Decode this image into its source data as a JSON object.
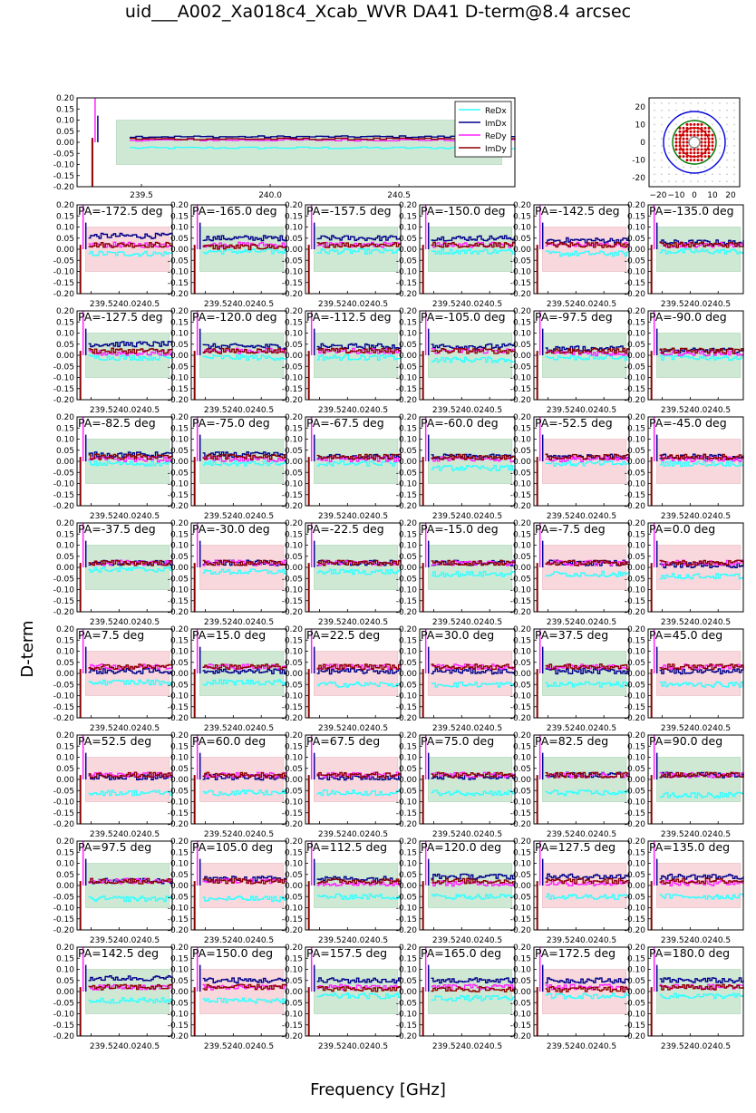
{
  "title": "uid___A002_Xa018c4_Xcab_WVR DA41 D-term@8.4 arcsec",
  "chart_data": {
    "type": "line",
    "title": "uid___A002_Xa018c4_Xcab_WVR DA41 D-term@8.4 arcsec",
    "xlabel": "Frequency [GHz]",
    "ylabel": "D-term",
    "xlim": [
      239.25,
      240.95
    ],
    "ylim": [
      -0.2,
      0.2
    ],
    "yticks": [
      "0.20",
      "0.15",
      "0.10",
      "0.05",
      "0.00",
      "-0.05",
      "-0.10",
      "-0.15",
      "-0.20"
    ],
    "xticks_top": [
      "239.5",
      "240.0",
      "240.5"
    ],
    "xtick_label_small": "239.5240.0240.5",
    "legend": {
      "entries": [
        "ReDx",
        "ImDx",
        "ReDy",
        "ImDy"
      ],
      "position": "top-right"
    },
    "series_colors": {
      "ReDx": "#33ffff",
      "ImDx": "#00008b",
      "ReDy": "#ff22ff",
      "ImDy": "#8b0000"
    },
    "band_colors": {
      "green": "#cfe8d4",
      "red": "#f8d8dc"
    },
    "band_range": [
      -0.1,
      0.1
    ],
    "overview": {
      "ReDx": -0.025,
      "ImDx": 0.025,
      "ReDy": 0.01,
      "ImDy": 0.015,
      "band": "green"
    },
    "beam_map": {
      "ticks": [
        "-20",
        "-10",
        "0",
        "10",
        "20"
      ],
      "xticks": [
        "−20",
        "−10",
        "0",
        "10",
        "20"
      ],
      "circle_radii": [
        3,
        8,
        12,
        17
      ],
      "circle_colors": [
        "#888888",
        "#cc0000",
        "#007700",
        "#0000dd"
      ],
      "xlim": [
        -25,
        25
      ],
      "ylim": [
        -25,
        25
      ]
    },
    "panels": [
      {
        "label": "PA=-172.5 deg",
        "band": "red",
        "ReDx": -0.02,
        "ImDx": 0.06,
        "ReDy": 0.02,
        "ImDy": 0.02
      },
      {
        "label": "PA=-165.0 deg",
        "band": "green",
        "ReDx": -0.01,
        "ImDx": 0.05,
        "ReDy": 0.02,
        "ImDy": 0.01
      },
      {
        "label": "PA=-157.5 deg",
        "band": "green",
        "ReDx": -0.01,
        "ImDx": 0.05,
        "ReDy": 0.02,
        "ImDy": 0.02
      },
      {
        "label": "PA=-150.0 deg",
        "band": "green",
        "ReDx": -0.01,
        "ImDx": 0.05,
        "ReDy": 0.02,
        "ImDy": 0.02
      },
      {
        "label": "PA=-142.5 deg",
        "band": "red",
        "ReDx": -0.02,
        "ImDx": 0.04,
        "ReDy": 0.02,
        "ImDy": 0.02
      },
      {
        "label": "PA=-135.0 deg",
        "band": "green",
        "ReDx": -0.01,
        "ImDx": 0.03,
        "ReDy": 0.02,
        "ImDy": 0.02
      },
      {
        "label": "PA=-127.5 deg",
        "band": "green",
        "ReDx": -0.01,
        "ImDx": 0.05,
        "ReDy": 0.01,
        "ImDy": 0.02
      },
      {
        "label": "PA=-120.0 deg",
        "band": "green",
        "ReDx": -0.01,
        "ImDx": 0.04,
        "ReDy": 0.02,
        "ImDy": 0.02
      },
      {
        "label": "PA=-112.5 deg",
        "band": "green",
        "ReDx": -0.01,
        "ImDx": 0.04,
        "ReDy": 0.02,
        "ImDy": 0.02
      },
      {
        "label": "PA=-105.0 deg",
        "band": "green",
        "ReDx": -0.02,
        "ImDx": 0.04,
        "ReDy": 0.02,
        "ImDy": 0.02
      },
      {
        "label": "PA=-97.5 deg",
        "band": "green",
        "ReDx": -0.01,
        "ImDx": 0.03,
        "ReDy": 0.01,
        "ImDy": 0.02
      },
      {
        "label": "PA=-90.0 deg",
        "band": "green",
        "ReDx": -0.01,
        "ImDx": 0.02,
        "ReDy": 0.01,
        "ImDy": 0.02
      },
      {
        "label": "PA=-82.5 deg",
        "band": "green",
        "ReDx": -0.01,
        "ImDx": 0.03,
        "ReDy": 0.01,
        "ImDy": 0.02
      },
      {
        "label": "PA=-75.0 deg",
        "band": "green",
        "ReDx": -0.01,
        "ImDx": 0.03,
        "ReDy": 0.01,
        "ImDy": 0.02
      },
      {
        "label": "PA=-67.5 deg",
        "band": "green",
        "ReDx": -0.01,
        "ImDx": 0.02,
        "ReDy": 0.01,
        "ImDy": 0.02
      },
      {
        "label": "PA=-60.0 deg",
        "band": "green",
        "ReDx": -0.03,
        "ImDx": 0.02,
        "ReDy": 0.01,
        "ImDy": 0.02
      },
      {
        "label": "PA=-52.5 deg",
        "band": "red",
        "ReDx": -0.01,
        "ImDx": 0.02,
        "ReDy": 0.01,
        "ImDy": 0.02
      },
      {
        "label": "PA=-45.0 deg",
        "band": "red",
        "ReDx": -0.01,
        "ImDx": 0.02,
        "ReDy": 0.01,
        "ImDy": 0.02
      },
      {
        "label": "PA=-37.5 deg",
        "band": "green",
        "ReDx": -0.01,
        "ImDx": 0.02,
        "ReDy": 0.02,
        "ImDy": 0.02
      },
      {
        "label": "PA=-30.0 deg",
        "band": "red",
        "ReDx": -0.02,
        "ImDx": 0.02,
        "ReDy": 0.02,
        "ImDy": 0.02
      },
      {
        "label": "PA=-22.5 deg",
        "band": "green",
        "ReDx": -0.02,
        "ImDx": 0.02,
        "ReDy": 0.02,
        "ImDy": 0.02
      },
      {
        "label": "PA=-15.0 deg",
        "band": "green",
        "ReDx": -0.03,
        "ImDx": 0.02,
        "ReDy": 0.02,
        "ImDy": 0.02
      },
      {
        "label": "PA=-7.5 deg",
        "band": "red",
        "ReDx": -0.03,
        "ImDx": 0.02,
        "ReDy": 0.02,
        "ImDy": 0.02
      },
      {
        "label": "PA=0.0 deg",
        "band": "red",
        "ReDx": -0.04,
        "ImDx": 0.01,
        "ReDy": 0.02,
        "ImDy": 0.02
      },
      {
        "label": "PA=7.5 deg",
        "band": "red",
        "ReDx": -0.04,
        "ImDx": 0.01,
        "ReDy": 0.03,
        "ImDy": 0.03
      },
      {
        "label": "PA=15.0 deg",
        "band": "green",
        "ReDx": -0.04,
        "ImDx": 0.01,
        "ReDy": 0.03,
        "ImDy": 0.03
      },
      {
        "label": "PA=22.5 deg",
        "band": "red",
        "ReDx": -0.05,
        "ImDx": 0.01,
        "ReDy": 0.03,
        "ImDy": 0.03
      },
      {
        "label": "PA=30.0 deg",
        "band": "red",
        "ReDx": -0.05,
        "ImDx": 0.01,
        "ReDy": 0.03,
        "ImDy": 0.03
      },
      {
        "label": "PA=37.5 deg",
        "band": "green",
        "ReDx": -0.05,
        "ImDx": 0.01,
        "ReDy": 0.03,
        "ImDy": 0.03
      },
      {
        "label": "PA=45.0 deg",
        "band": "red",
        "ReDx": -0.05,
        "ImDx": 0.01,
        "ReDy": 0.03,
        "ImDy": 0.03
      },
      {
        "label": "PA=52.5 deg",
        "band": "red",
        "ReDx": -0.06,
        "ImDx": 0.01,
        "ReDy": 0.02,
        "ImDy": 0.02
      },
      {
        "label": "PA=60.0 deg",
        "band": "red",
        "ReDx": -0.06,
        "ImDx": 0.01,
        "ReDy": 0.02,
        "ImDy": 0.02
      },
      {
        "label": "PA=67.5 deg",
        "band": "red",
        "ReDx": -0.06,
        "ImDx": 0.01,
        "ReDy": 0.02,
        "ImDy": 0.02
      },
      {
        "label": "PA=75.0 deg",
        "band": "green",
        "ReDx": -0.06,
        "ImDx": 0.01,
        "ReDy": 0.02,
        "ImDy": 0.02
      },
      {
        "label": "PA=82.5 deg",
        "band": "green",
        "ReDx": -0.06,
        "ImDx": 0.02,
        "ReDy": 0.02,
        "ImDy": 0.02
      },
      {
        "label": "PA=90.0 deg",
        "band": "green",
        "ReDx": -0.07,
        "ImDx": 0.02,
        "ReDy": 0.02,
        "ImDy": 0.02
      },
      {
        "label": "PA=97.5 deg",
        "band": "green",
        "ReDx": -0.06,
        "ImDx": 0.02,
        "ReDy": 0.02,
        "ImDy": 0.02
      },
      {
        "label": "PA=105.0 deg",
        "band": "red",
        "ReDx": -0.06,
        "ImDx": 0.03,
        "ReDy": 0.02,
        "ImDy": 0.02
      },
      {
        "label": "PA=112.5 deg",
        "band": "green",
        "ReDx": -0.05,
        "ImDx": 0.03,
        "ReDy": 0.01,
        "ImDy": 0.02
      },
      {
        "label": "PA=120.0 deg",
        "band": "green",
        "ReDx": -0.05,
        "ImDx": 0.04,
        "ReDy": 0.01,
        "ImDy": 0.02
      },
      {
        "label": "PA=127.5 deg",
        "band": "red",
        "ReDx": -0.05,
        "ImDx": 0.04,
        "ReDy": 0.01,
        "ImDy": 0.02
      },
      {
        "label": "PA=135.0 deg",
        "band": "red",
        "ReDx": -0.05,
        "ImDx": 0.04,
        "ReDy": 0.01,
        "ImDy": 0.02
      },
      {
        "label": "PA=142.5 deg",
        "band": "green",
        "ReDx": -0.04,
        "ImDx": 0.06,
        "ReDy": 0.02,
        "ImDy": 0.02
      },
      {
        "label": "PA=150.0 deg",
        "band": "red",
        "ReDx": -0.04,
        "ImDx": 0.05,
        "ReDy": 0.02,
        "ImDy": 0.02
      },
      {
        "label": "PA=157.5 deg",
        "band": "green",
        "ReDx": -0.02,
        "ImDx": 0.05,
        "ReDy": 0.02,
        "ImDy": 0.01
      },
      {
        "label": "PA=165.0 deg",
        "band": "green",
        "ReDx": -0.03,
        "ImDx": 0.05,
        "ReDy": 0.02,
        "ImDy": 0.01
      },
      {
        "label": "PA=172.5 deg",
        "band": "red",
        "ReDx": -0.02,
        "ImDx": 0.05,
        "ReDy": 0.02,
        "ImDy": 0.01
      },
      {
        "label": "PA=180.0 deg",
        "band": "green",
        "ReDx": -0.02,
        "ImDx": 0.05,
        "ReDy": 0.02,
        "ImDy": 0.02
      }
    ]
  }
}
